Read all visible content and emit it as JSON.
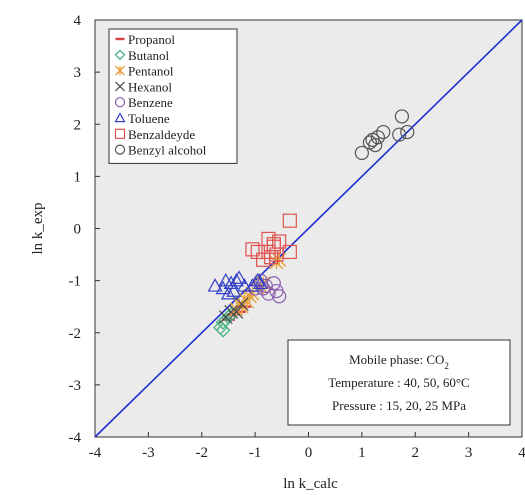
{
  "chart_data": {
    "type": "scatter",
    "xlabel": "ln k_calc",
    "ylabel": "ln k_exp",
    "xlim": [
      -4,
      4
    ],
    "ylim": [
      -4,
      4
    ],
    "x_ticks": [
      "-4",
      "-3",
      "-2",
      "-1",
      "0",
      "1",
      "2",
      "3",
      "4"
    ],
    "y_ticks": [
      "-4",
      "-3",
      "-2",
      "-1",
      "0",
      "1",
      "2",
      "3",
      "4"
    ],
    "grid": false,
    "plot_background": "#ebebeb",
    "legend_position": "top-left",
    "reference_line": {
      "from": [
        -4,
        -4
      ],
      "to": [
        4,
        4
      ],
      "color": "#1f2fd0"
    },
    "series": [
      {
        "name": "Propanol",
        "marker": "dash",
        "color": "#d8404a",
        "points": [
          [
            -1.5,
            -1.75
          ],
          [
            -1.4,
            -1.65
          ],
          [
            -1.3,
            -1.6
          ],
          [
            -1.2,
            -1.5
          ]
        ]
      },
      {
        "name": "Butanol",
        "marker": "diamond",
        "color": "#3fae7a",
        "points": [
          [
            -1.65,
            -1.9
          ],
          [
            -1.6,
            -1.8
          ],
          [
            -1.55,
            -1.75
          ],
          [
            -1.5,
            -1.7
          ],
          [
            -1.45,
            -1.65
          ],
          [
            -1.6,
            -1.95
          ]
        ]
      },
      {
        "name": "Pentanol",
        "marker": "asterisk",
        "color": "#e8a23a",
        "points": [
          [
            -1.35,
            -1.55
          ],
          [
            -1.3,
            -1.45
          ],
          [
            -1.25,
            -1.5
          ],
          [
            -1.2,
            -1.35
          ],
          [
            -1.1,
            -1.3
          ],
          [
            -1.05,
            -1.25
          ],
          [
            -0.95,
            -1.15
          ],
          [
            -0.9,
            -1.1
          ],
          [
            -0.85,
            -1.05
          ],
          [
            -1.15,
            -1.4
          ],
          [
            -0.6,
            -0.65
          ],
          [
            -0.55,
            -0.6
          ]
        ]
      },
      {
        "name": "Hexanol",
        "marker": "x",
        "color": "#4a4a4a",
        "points": [
          [
            -1.55,
            -1.7
          ],
          [
            -1.45,
            -1.6
          ],
          [
            -1.35,
            -1.6
          ],
          [
            -1.25,
            -1.45
          ]
        ]
      },
      {
        "name": "Benzene",
        "marker": "circle",
        "color": "#8b5fb0",
        "points": [
          [
            -0.9,
            -1.0
          ],
          [
            -0.85,
            -1.15
          ],
          [
            -0.8,
            -1.1
          ],
          [
            -0.75,
            -1.25
          ],
          [
            -0.65,
            -1.05
          ],
          [
            -0.6,
            -1.2
          ],
          [
            -0.55,
            -1.3
          ],
          [
            -1.0,
            -1.15
          ]
        ]
      },
      {
        "name": "Toluene",
        "marker": "triangle",
        "color": "#3240c8",
        "points": [
          [
            -1.75,
            -1.1
          ],
          [
            -1.6,
            -1.15
          ],
          [
            -1.55,
            -1.0
          ],
          [
            -1.45,
            -1.05
          ],
          [
            -1.35,
            -1.0
          ],
          [
            -1.3,
            -0.95
          ],
          [
            -1.2,
            -1.1
          ],
          [
            -1.05,
            -1.1
          ],
          [
            -0.95,
            -1.0
          ],
          [
            -0.9,
            -1.05
          ],
          [
            -1.4,
            -1.2
          ],
          [
            -1.5,
            -1.25
          ]
        ]
      },
      {
        "name": "Benzaldeyde",
        "marker": "square",
        "color": "#e0524e",
        "points": [
          [
            -0.35,
            0.15
          ],
          [
            -0.35,
            -0.45
          ],
          [
            -0.55,
            -0.25
          ],
          [
            -0.65,
            -0.35
          ],
          [
            -0.75,
            -0.2
          ],
          [
            -0.85,
            -0.6
          ],
          [
            -0.7,
            -0.55
          ],
          [
            -0.95,
            -0.45
          ],
          [
            -1.05,
            -0.4
          ],
          [
            -0.6,
            -0.5
          ],
          [
            -0.75,
            -0.45
          ],
          [
            -0.65,
            -0.3
          ]
        ]
      },
      {
        "name": "Benzyl alcohol",
        "marker": "circle",
        "color": "#555555",
        "points": [
          [
            1.0,
            1.45
          ],
          [
            1.15,
            1.65
          ],
          [
            1.25,
            1.6
          ],
          [
            1.3,
            1.75
          ],
          [
            1.4,
            1.85
          ],
          [
            1.7,
            1.8
          ],
          [
            1.75,
            2.15
          ],
          [
            1.85,
            1.85
          ],
          [
            1.2,
            1.7
          ]
        ]
      }
    ],
    "annotation": {
      "line1_prefix": "Mobile phase: CO",
      "line1_subscript": "2",
      "line2": "Temperature : 40, 50, 60°C",
      "line3": "Pressure : 15, 20, 25 MPa"
    }
  }
}
